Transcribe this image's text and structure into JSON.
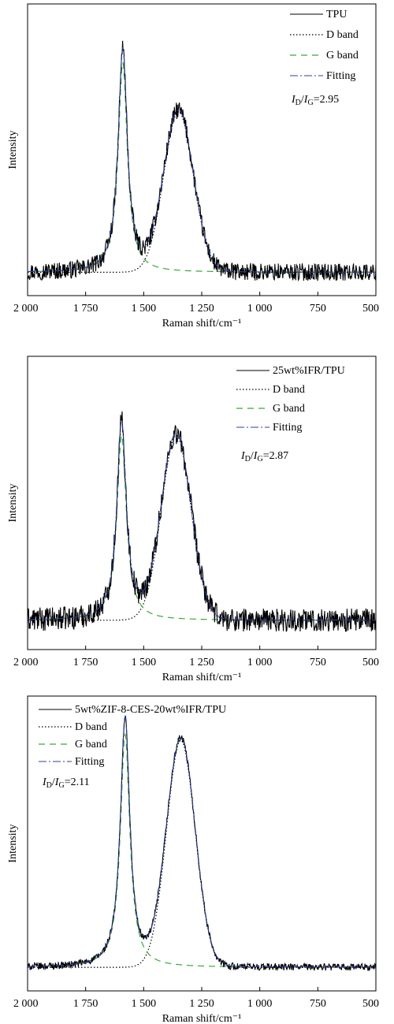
{
  "chart_data": [
    {
      "type": "line",
      "panel": "a",
      "xlabel": "Raman shift/cm⁻¹",
      "ylabel": "Intensity",
      "xlim": [
        2000,
        500
      ],
      "x_reversed": true,
      "xticks": [
        2000,
        1750,
        1500,
        1250,
        1000,
        750,
        500
      ],
      "xtick_labels": [
        "2 000",
        "1 750",
        "1 500",
        "1 250",
        "1 000",
        "750",
        "500"
      ],
      "yticks_shown": false,
      "grid": false,
      "legend_position": "top-right",
      "ratio_label": {
        "I": "I",
        "D": "D",
        "G": "G",
        "value": "=2.95"
      },
      "series": [
        {
          "name": "TPU",
          "role": "spectrum",
          "noise": 0.03,
          "baseline": 0.08,
          "peaks": [
            {
              "center": 1590,
              "height": 0.77,
              "width": 48
            },
            {
              "center": 1350,
              "height": 0.55,
              "width": 145
            }
          ]
        },
        {
          "name": "D band",
          "role": "d",
          "baseline": 0.08,
          "center": 1350,
          "height": 0.55,
          "width": 145
        },
        {
          "name": "G band",
          "role": "g",
          "baseline": 0.08,
          "center": 1590,
          "height": 0.72,
          "width": 48
        },
        {
          "name": "Fitting",
          "role": "fit"
        }
      ],
      "colors": {
        "spectrum": "#000000",
        "d": "#000000",
        "g": "#3aa83a",
        "fit": "#2c3fa0"
      }
    },
    {
      "type": "line",
      "panel": "b",
      "xlabel": "Raman shift/cm⁻¹",
      "ylabel": "Intensity",
      "xlim": [
        2000,
        500
      ],
      "x_reversed": true,
      "xticks": [
        2000,
        1750,
        1500,
        1250,
        1000,
        750,
        500
      ],
      "xtick_labels": [
        "2 000",
        "1 750",
        "1 500",
        "1 250",
        "1 000",
        "750",
        "500"
      ],
      "yticks_shown": false,
      "grid": false,
      "legend_position": "top-right",
      "ratio_label": {
        "I": "I",
        "D": "D",
        "G": "G",
        "value": "=2.87"
      },
      "series": [
        {
          "name": "25wt%IFR/TPU",
          "role": "spectrum",
          "noise": 0.04,
          "baseline": 0.1,
          "peaks": [
            {
              "center": 1595,
              "height": 0.68,
              "width": 50
            },
            {
              "center": 1360,
              "height": 0.63,
              "width": 145
            }
          ]
        },
        {
          "name": "D band",
          "role": "d",
          "baseline": 0.1,
          "center": 1360,
          "height": 0.63,
          "width": 145
        },
        {
          "name": "G band",
          "role": "g",
          "baseline": 0.1,
          "center": 1595,
          "height": 0.63,
          "width": 50
        },
        {
          "name": "Fitting",
          "role": "fit"
        }
      ],
      "colors": {
        "spectrum": "#000000",
        "d": "#000000",
        "g": "#3aa83a",
        "fit": "#2c3fa0"
      }
    },
    {
      "type": "line",
      "panel": "c",
      "xlabel": "Raman shift/cm⁻¹",
      "ylabel": "Intensity",
      "xlim": [
        2000,
        500
      ],
      "x_reversed": true,
      "xticks": [
        2000,
        1750,
        1500,
        1250,
        1000,
        750,
        500
      ],
      "xtick_labels": [
        "2 000",
        "1 750",
        "1 500",
        "1 250",
        "1 000",
        "750",
        "500"
      ],
      "yticks_shown": false,
      "grid": false,
      "legend_position": "top-left",
      "ratio_label": {
        "I": "I",
        "D": "D",
        "G": "G",
        "value": "=2.11"
      },
      "series": [
        {
          "name": "5wt%ZIF-8-CES-20wt%IFR/TPU",
          "role": "spectrum",
          "noise": 0.012,
          "baseline": 0.08,
          "peaks": [
            {
              "center": 1580,
              "height": 0.85,
              "width": 50
            },
            {
              "center": 1340,
              "height": 0.77,
              "width": 140
            }
          ]
        },
        {
          "name": "D band",
          "role": "d",
          "baseline": 0.08,
          "center": 1340,
          "height": 0.77,
          "width": 140
        },
        {
          "name": "G band",
          "role": "g",
          "baseline": 0.08,
          "center": 1580,
          "height": 0.79,
          "width": 50
        },
        {
          "name": "Fitting",
          "role": "fit"
        }
      ],
      "colors": {
        "spectrum": "#000000",
        "d": "#000000",
        "g": "#3aa83a",
        "fit": "#2c3fa0"
      }
    }
  ]
}
